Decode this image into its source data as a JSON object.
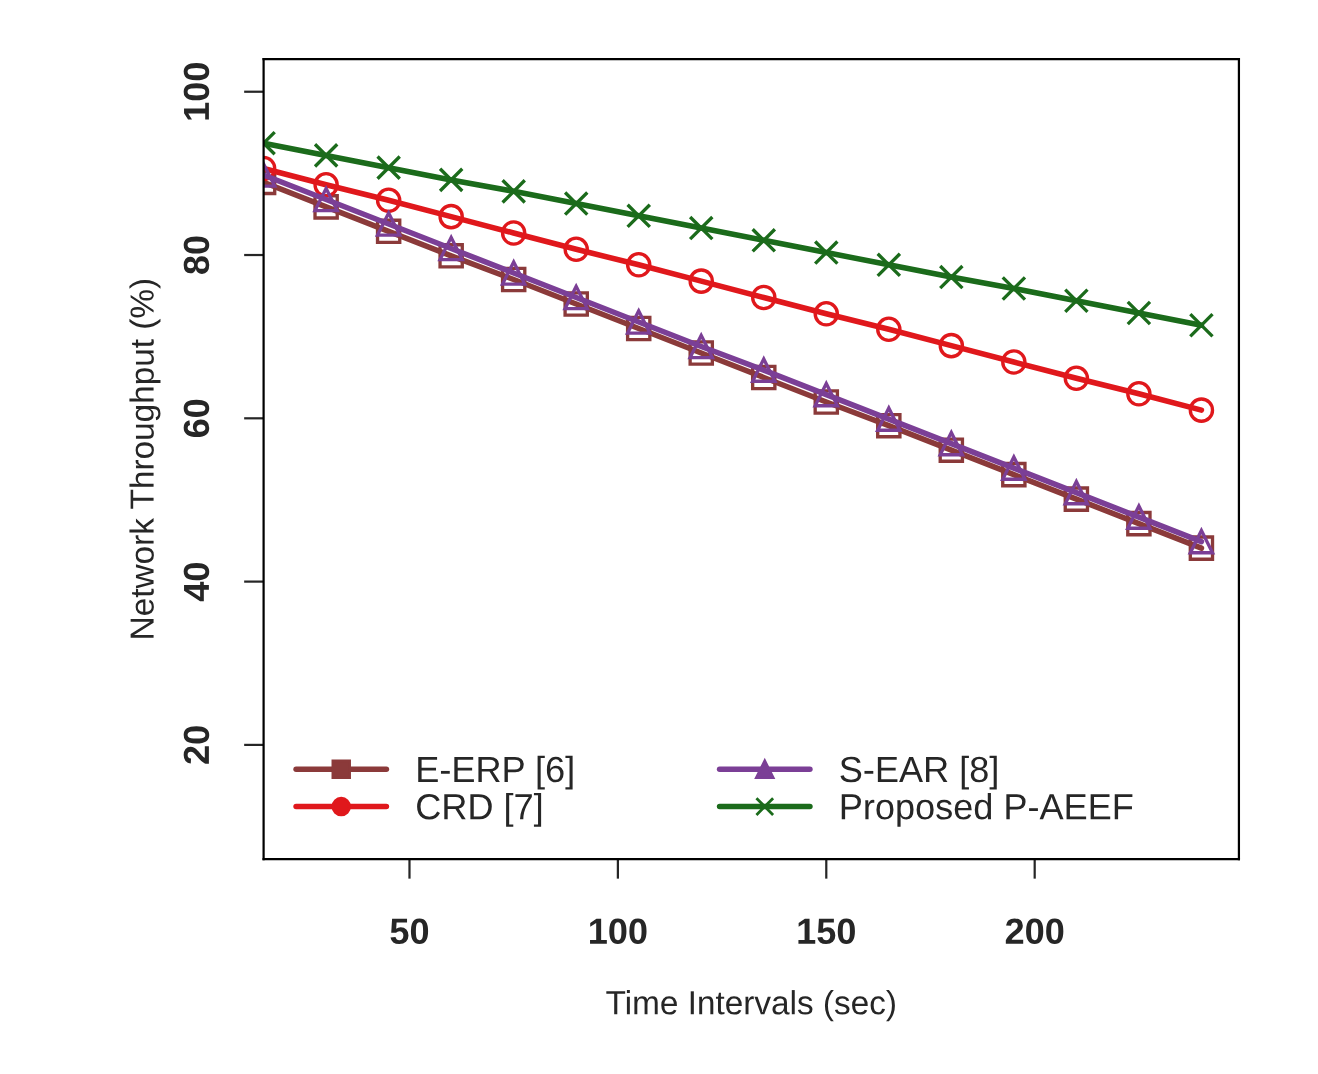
{
  "chart_data": {
    "type": "line",
    "xlabel": "Time Intervals (sec)",
    "ylabel": "Network Throughput (%)",
    "x": [
      15,
      30,
      45,
      60,
      75,
      90,
      105,
      120,
      135,
      150,
      165,
      180,
      195,
      210,
      225,
      240
    ],
    "xlim": [
      15,
      249
    ],
    "xticks": [
      50,
      100,
      150,
      200
    ],
    "ylim": [
      6,
      104
    ],
    "yticks": [
      20,
      40,
      60,
      80,
      100
    ],
    "grid": false,
    "legend": "bottom left",
    "line_style": "solid",
    "series": [
      {
        "name": "E-ERP [6]",
        "color": "#8b3a3a",
        "marker": "square",
        "values": [
          88.9,
          85.9,
          82.9,
          79.9,
          77.0,
          74.0,
          71.0,
          68.0,
          65.0,
          62.0,
          59.1,
          56.1,
          53.1,
          50.1,
          47.1,
          44.1
        ]
      },
      {
        "name": "CRD [7]",
        "color": "#e0181c",
        "marker": "circle",
        "values": [
          90.6,
          88.6,
          86.7,
          84.7,
          82.7,
          80.7,
          78.8,
          76.8,
          74.8,
          72.8,
          70.9,
          68.9,
          66.9,
          64.9,
          63.0,
          61.0
        ]
      },
      {
        "name": "S-EAR [8]",
        "color": "#7b3f96",
        "marker": "triangle",
        "values": [
          89.8,
          86.8,
          83.8,
          80.8,
          77.8,
          74.8,
          71.8,
          68.8,
          65.9,
          62.9,
          59.9,
          56.9,
          53.9,
          50.9,
          47.9,
          44.9
        ]
      },
      {
        "name": "Proposed P-AEEF",
        "color": "#1b6b1b",
        "marker": "cross",
        "values": [
          93.7,
          92.2,
          90.7,
          89.2,
          87.8,
          86.3,
          84.8,
          83.3,
          81.8,
          80.3,
          78.8,
          77.3,
          75.9,
          74.4,
          72.9,
          71.4
        ]
      }
    ]
  }
}
